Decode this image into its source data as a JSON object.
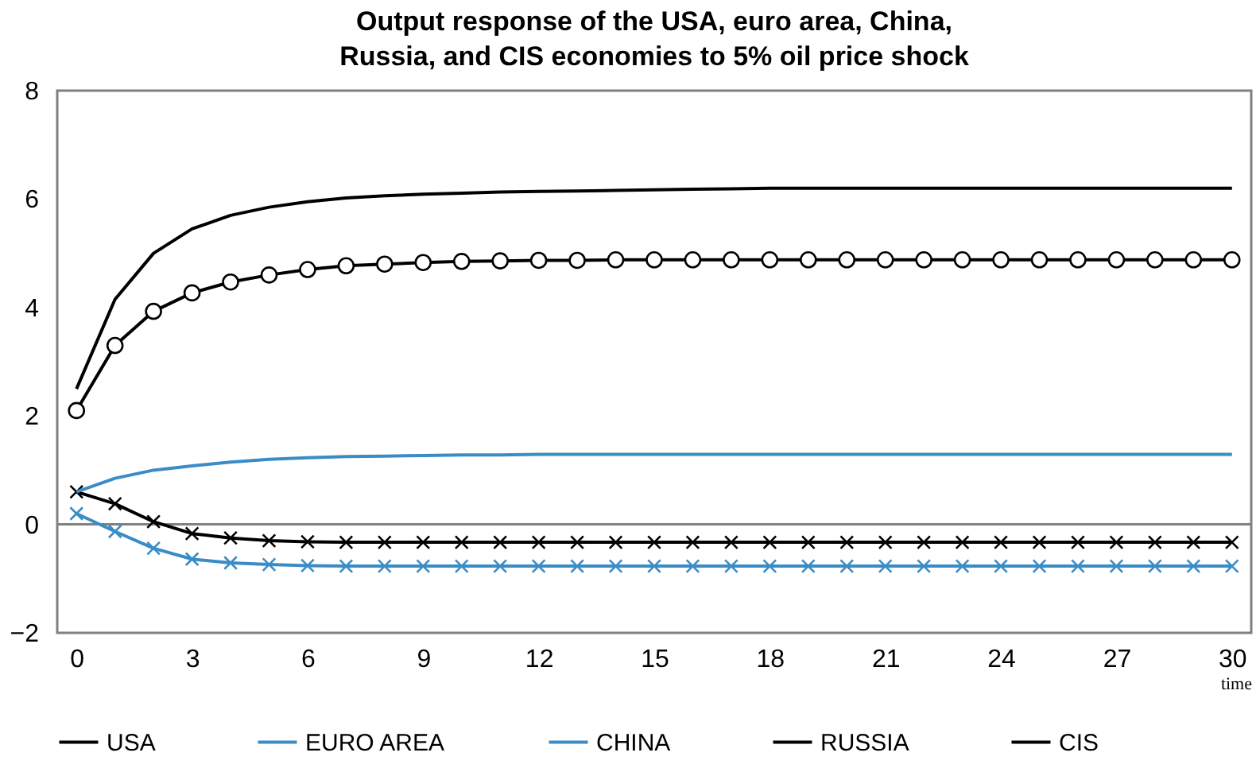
{
  "chart_data": {
    "type": "line",
    "title": "Output response of the USA, euro area, China, Russia, and CIS economies to 5% oil price shock",
    "xlabel": "time",
    "x": [
      0,
      1,
      2,
      3,
      4,
      5,
      6,
      7,
      8,
      9,
      10,
      11,
      12,
      13,
      14,
      15,
      16,
      17,
      18,
      19,
      20,
      21,
      22,
      23,
      24,
      25,
      26,
      27,
      28,
      29,
      30
    ],
    "series": [
      {
        "name": "USA",
        "color": "#000000",
        "marker": "cross",
        "values": [
          0.6,
          0.38,
          0.05,
          -0.17,
          -0.25,
          -0.3,
          -0.32,
          -0.33,
          -0.33,
          -0.33,
          -0.33,
          -0.33,
          -0.33,
          -0.33,
          -0.33,
          -0.33,
          -0.33,
          -0.33,
          -0.33,
          -0.33,
          -0.33,
          -0.33,
          -0.33,
          -0.33,
          -0.33,
          -0.33,
          -0.33,
          -0.33,
          -0.33,
          -0.33,
          -0.33
        ]
      },
      {
        "name": "EURO AREA",
        "color": "#3a8cc6",
        "marker": "cross",
        "values": [
          0.2,
          -0.13,
          -0.44,
          -0.64,
          -0.71,
          -0.74,
          -0.76,
          -0.77,
          -0.77,
          -0.77,
          -0.77,
          -0.77,
          -0.77,
          -0.77,
          -0.77,
          -0.77,
          -0.77,
          -0.77,
          -0.77,
          -0.77,
          -0.77,
          -0.77,
          -0.77,
          -0.77,
          -0.77,
          -0.77,
          -0.77,
          -0.77,
          -0.77,
          -0.77,
          -0.77
        ]
      },
      {
        "name": "CHINA",
        "color": "#3a8cc6",
        "marker": "none",
        "values": [
          0.6,
          0.85,
          1.0,
          1.08,
          1.15,
          1.2,
          1.23,
          1.25,
          1.26,
          1.27,
          1.28,
          1.28,
          1.29,
          1.29,
          1.29,
          1.29,
          1.29,
          1.29,
          1.29,
          1.29,
          1.29,
          1.29,
          1.29,
          1.29,
          1.29,
          1.29,
          1.29,
          1.29,
          1.29,
          1.29,
          1.29
        ]
      },
      {
        "name": "RUSSIA",
        "color": "#000000",
        "marker": "circle",
        "values": [
          2.1,
          3.3,
          3.93,
          4.27,
          4.47,
          4.6,
          4.7,
          4.77,
          4.8,
          4.83,
          4.85,
          4.86,
          4.87,
          4.87,
          4.88,
          4.88,
          4.88,
          4.88,
          4.88,
          4.88,
          4.88,
          4.88,
          4.88,
          4.88,
          4.88,
          4.88,
          4.88,
          4.88,
          4.88,
          4.88,
          4.88
        ]
      },
      {
        "name": "CIS",
        "color": "#000000",
        "marker": "none",
        "values": [
          2.5,
          4.15,
          5.0,
          5.45,
          5.7,
          5.85,
          5.95,
          6.02,
          6.06,
          6.09,
          6.11,
          6.13,
          6.14,
          6.15,
          6.16,
          6.17,
          6.18,
          6.19,
          6.2,
          6.2,
          6.2,
          6.2,
          6.2,
          6.2,
          6.2,
          6.2,
          6.2,
          6.2,
          6.2,
          6.2,
          6.2
        ]
      }
    ],
    "xlim": [
      -0.5,
      30.5
    ],
    "xticks": [
      0,
      3,
      6,
      9,
      12,
      15,
      18,
      21,
      24,
      27,
      30
    ],
    "ylim": [
      -2,
      8
    ],
    "yticks": [
      -2,
      0,
      2,
      4,
      6,
      8
    ],
    "ref_lines": [
      {
        "axis": "y",
        "value": 0,
        "color": "#808080"
      }
    ],
    "grid": false,
    "legend": "bottom",
    "line_style": "solid"
  }
}
